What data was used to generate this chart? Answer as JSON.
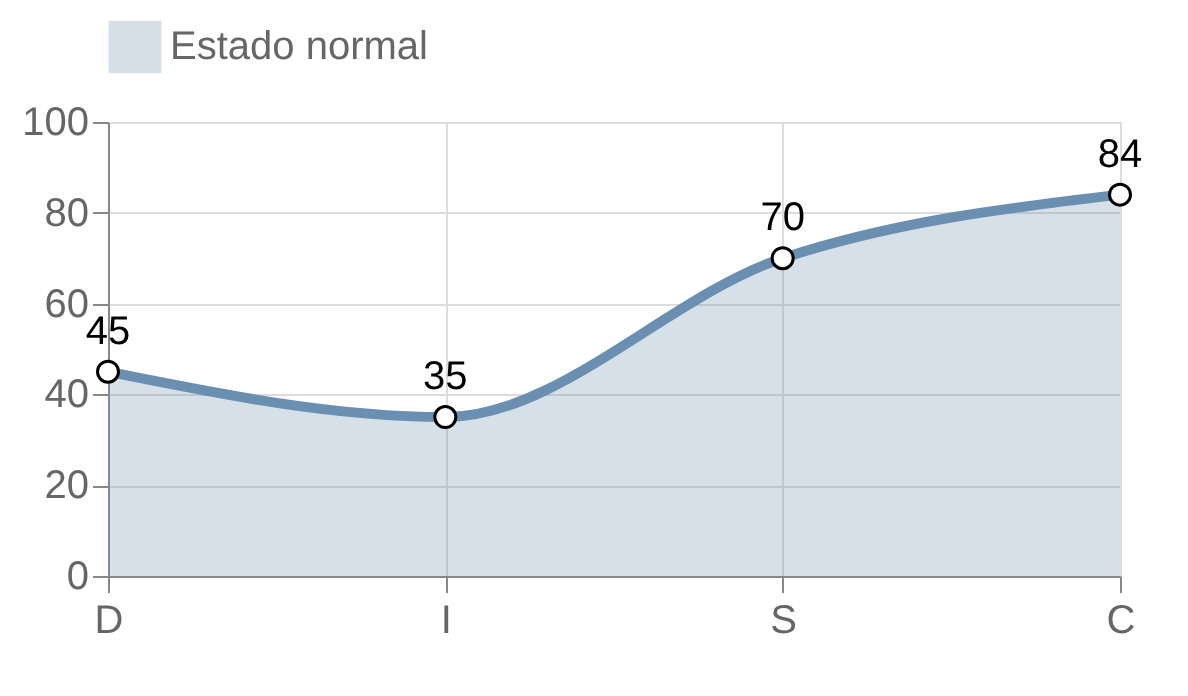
{
  "chart_data": {
    "type": "area",
    "categories": [
      "D",
      "I",
      "S",
      "C"
    ],
    "series": [
      {
        "name": "Estado normal",
        "color": "#6a8fb0",
        "values": [
          45,
          35,
          70,
          84
        ]
      }
    ],
    "ylim": [
      0,
      100
    ],
    "yticks": [
      0,
      20,
      40,
      60,
      80,
      100
    ],
    "grid": true,
    "legend": "top",
    "marker": "circle",
    "data_labels": true,
    "line_style": "solid"
  }
}
